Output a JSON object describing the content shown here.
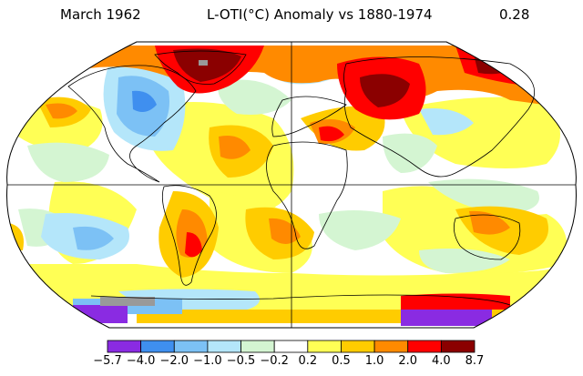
{
  "header": {
    "date": "March 1962",
    "title": "L-OTI(°C) Anomaly vs 1880-1974",
    "global_mean": "0.28"
  },
  "legend": {
    "labels": [
      "−5.7",
      "−4.0",
      "−2.0",
      "−1.0",
      "−0.5",
      "−0.2",
      "0.2",
      "0.5",
      "1.0",
      "2.0",
      "4.0",
      "8.7"
    ],
    "colors": [
      "#8a2be2",
      "#3f8fef",
      "#7cc1f5",
      "#b4e6fa",
      "#d4f5d2",
      "#ffffff",
      "#ffff55",
      "#ffcc00",
      "#ff8a00",
      "#ff0000",
      "#8b0000"
    ]
  },
  "map": {
    "projection": "Robinson",
    "missing_color": "#999999",
    "ocean_background": "#ffffff"
  }
}
